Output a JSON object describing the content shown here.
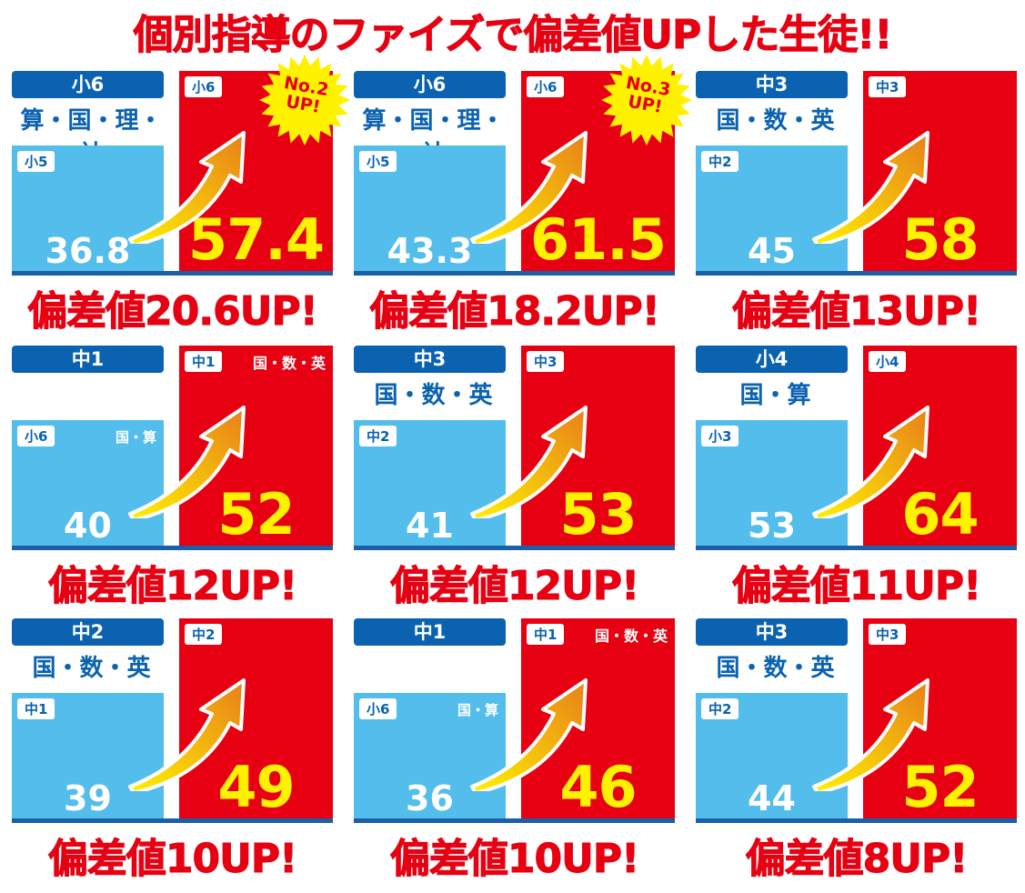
{
  "title": "個別指導のファイズで偏差値UPした生徒!!",
  "colors": {
    "red": "#e60012",
    "blue_box": "#53bdec",
    "header_blue": "#0a62b0",
    "after_value": "#fff200"
  },
  "panels": [
    {
      "grade_after": "小6",
      "grade_before": "小5",
      "subjects": "算・国・理・社",
      "before": "36.8",
      "after": "57.4",
      "caption": "偏差値20.6UP!",
      "badge": [
        "No.2",
        "UP!"
      ]
    },
    {
      "grade_after": "小6",
      "grade_before": "小5",
      "subjects": "算・国・理・社",
      "before": "43.3",
      "after": "61.5",
      "caption": "偏差値18.2UP!",
      "badge": [
        "No.3",
        "UP!"
      ]
    },
    {
      "grade_after": "中3",
      "grade_before": "中2",
      "subjects": "国・数・英",
      "before": "45",
      "after": "58",
      "caption": "偏差値13UP!"
    },
    {
      "grade_after": "中1",
      "grade_before": "小6",
      "subjects_before": "国・算",
      "subjects_after": "国・数・英",
      "before": "40",
      "after": "52",
      "caption": "偏差値12UP!"
    },
    {
      "grade_after": "中3",
      "grade_before": "中2",
      "subjects": "国・数・英",
      "before": "41",
      "after": "53",
      "caption": "偏差値12UP!"
    },
    {
      "grade_after": "小4",
      "grade_before": "小3",
      "subjects": "国・算",
      "before": "53",
      "after": "64",
      "caption": "偏差値11UP!"
    },
    {
      "grade_after": "中2",
      "grade_before": "中1",
      "subjects": "国・数・英",
      "before": "39",
      "after": "49",
      "caption": "偏差値10UP!"
    },
    {
      "grade_after": "中1",
      "grade_before": "小6",
      "subjects_before": "国・算",
      "subjects_after": "国・数・英",
      "before": "36",
      "after": "46",
      "caption": "偏差値10UP!"
    },
    {
      "grade_after": "中3",
      "grade_before": "中2",
      "subjects": "国・数・英",
      "before": "44",
      "after": "52",
      "caption": "偏差値8UP!"
    }
  ]
}
